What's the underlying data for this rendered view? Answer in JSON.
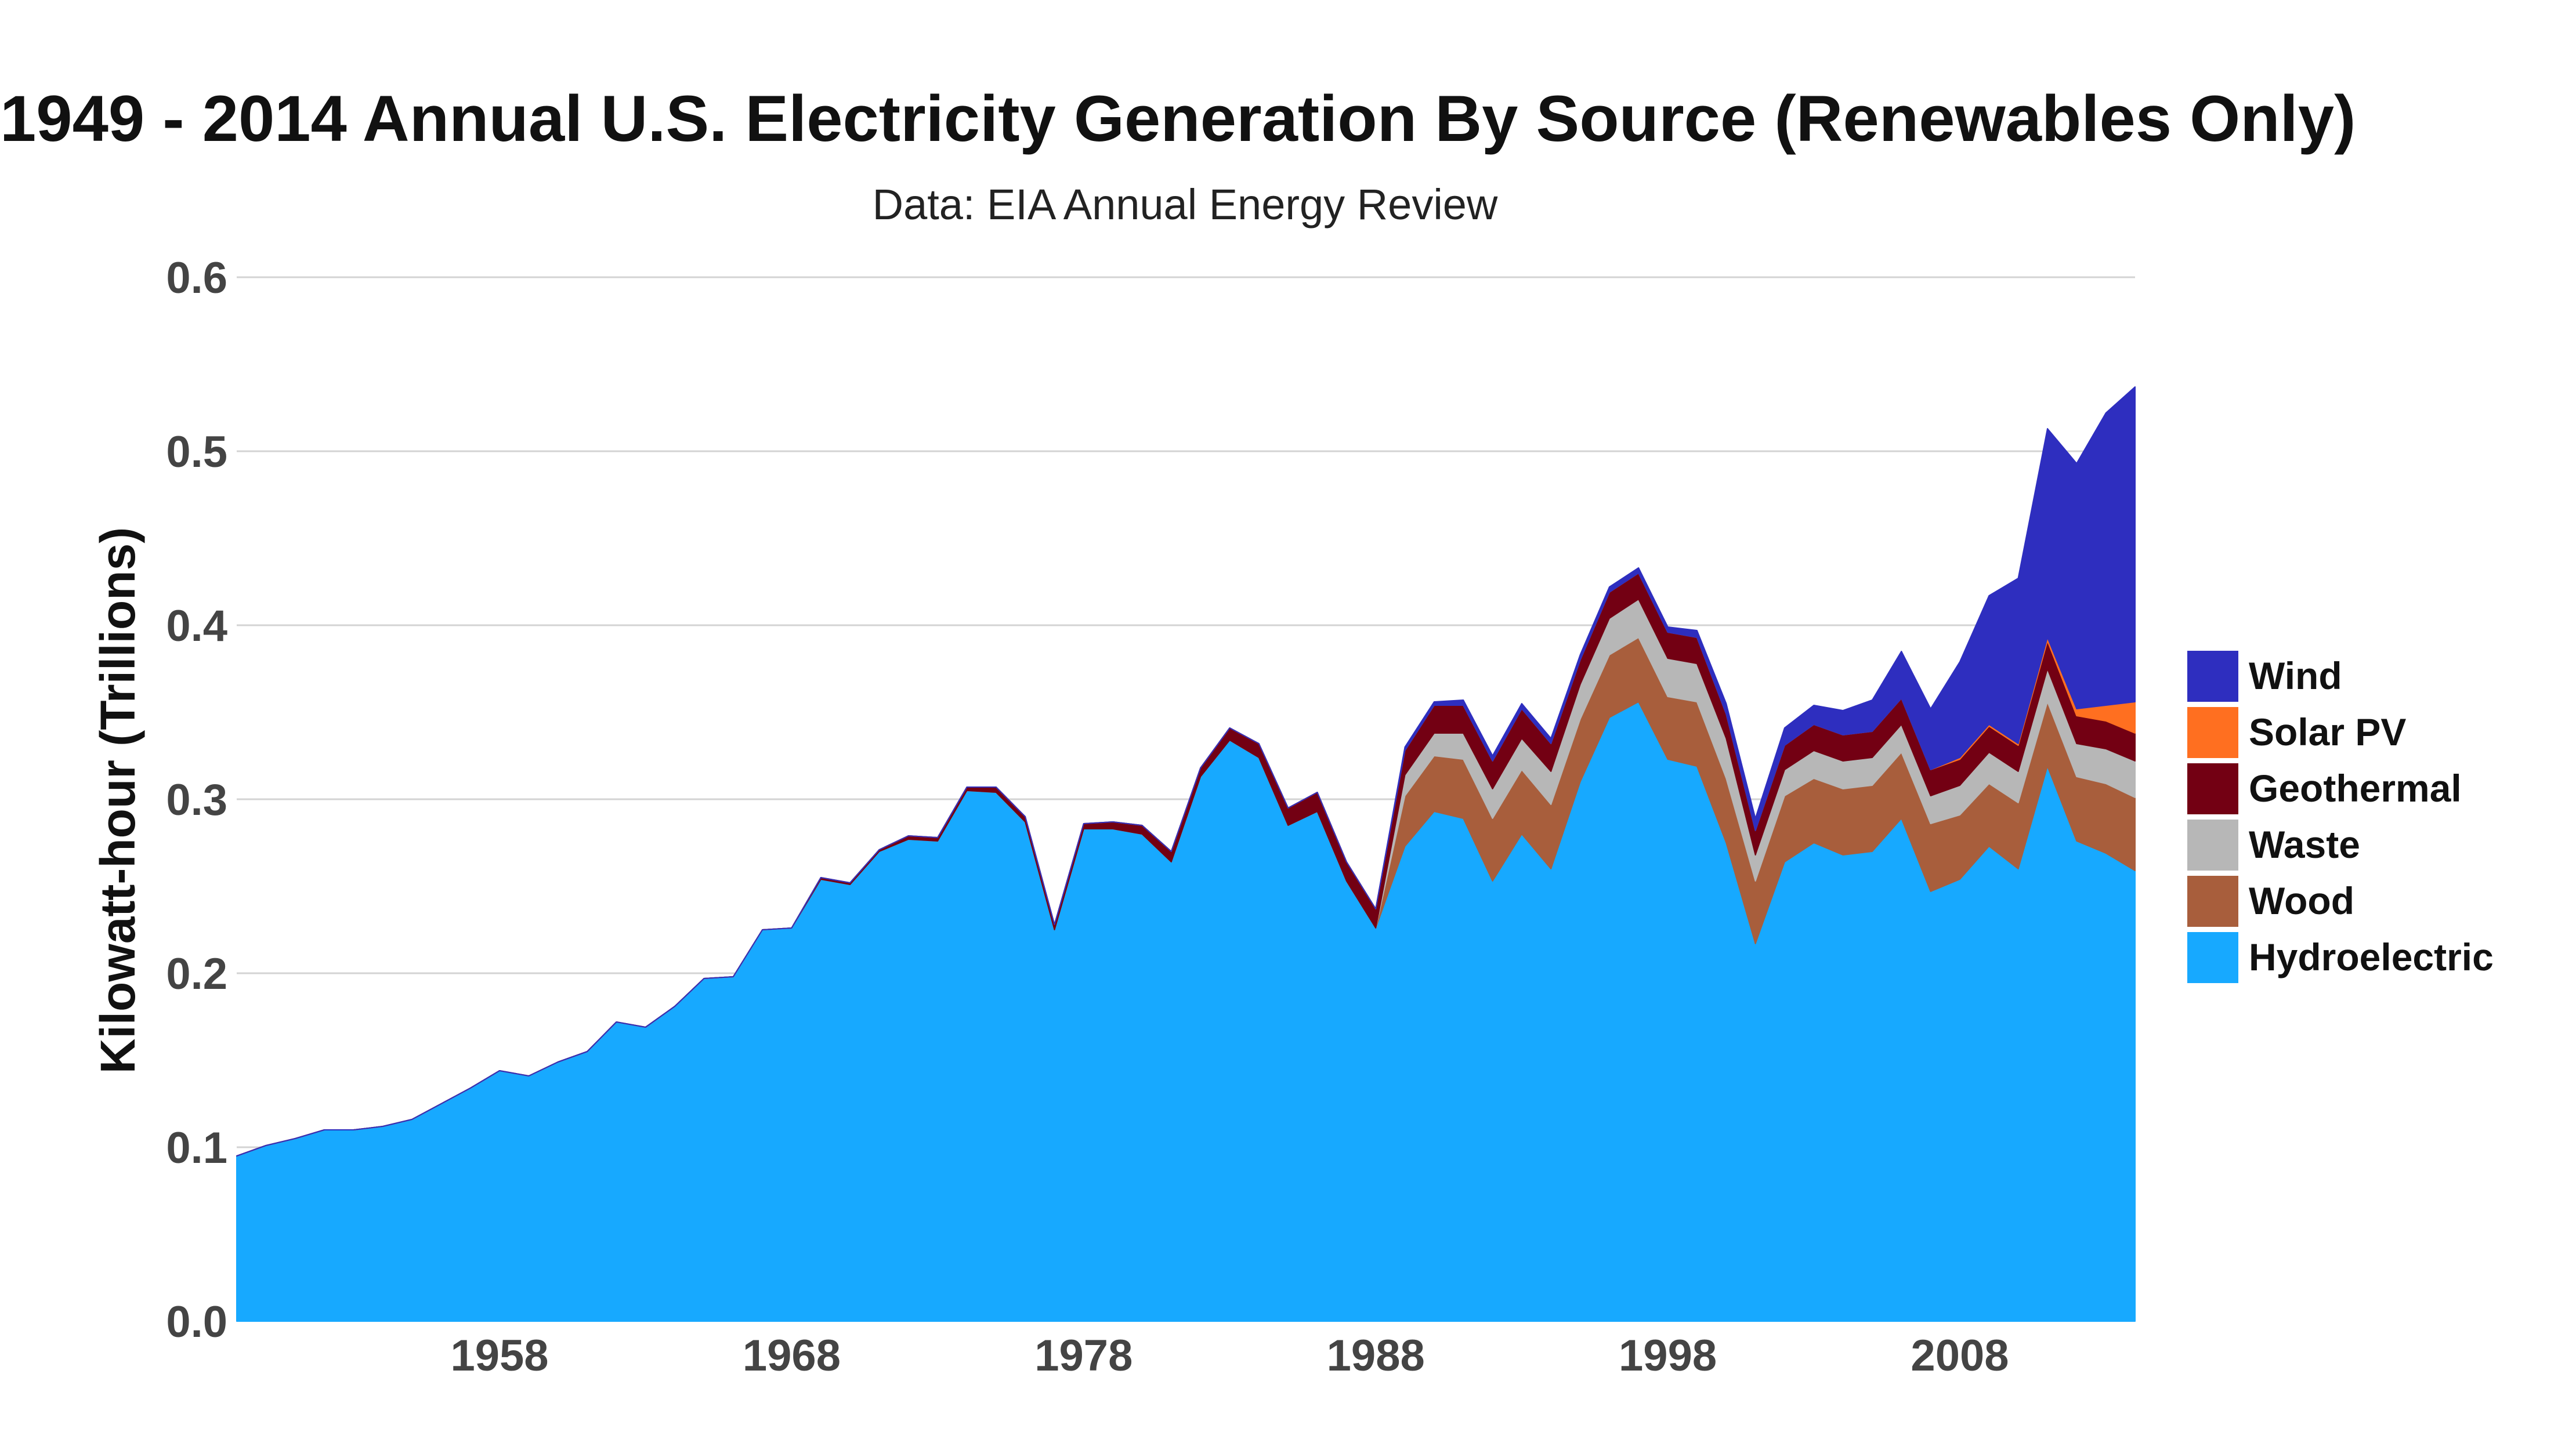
{
  "chart_data": {
    "type": "area",
    "stacked": true,
    "title": "1949 - 2014 Annual U.S. Electricity Generation By Source (Renewables Only)",
    "subtitle": "Data: EIA Annual Energy Review",
    "xlabel": "",
    "ylabel": "Kilowatt-hour (Trillions)",
    "xlim": [
      1949,
      2014
    ],
    "ylim": [
      0,
      0.6
    ],
    "yticks": [
      "0.0",
      "0.1",
      "0.2",
      "0.3",
      "0.4",
      "0.5",
      "0.6"
    ],
    "xticks": [
      "1958",
      "1968",
      "1978",
      "1988",
      "1998",
      "2008"
    ],
    "grid": true,
    "legend_position": "right",
    "x": [
      1949,
      1950,
      1951,
      1952,
      1953,
      1954,
      1955,
      1956,
      1957,
      1958,
      1959,
      1960,
      1961,
      1962,
      1963,
      1964,
      1965,
      1966,
      1967,
      1968,
      1969,
      1970,
      1971,
      1972,
      1973,
      1974,
      1975,
      1976,
      1977,
      1978,
      1979,
      1980,
      1981,
      1982,
      1983,
      1984,
      1985,
      1986,
      1987,
      1988,
      1989,
      1990,
      1991,
      1992,
      1993,
      1994,
      1995,
      1996,
      1997,
      1998,
      1999,
      2000,
      2001,
      2002,
      2003,
      2004,
      2005,
      2006,
      2007,
      2008,
      2009,
      2010,
      2011,
      2012,
      2013,
      2014
    ],
    "series": [
      {
        "name": "Hydroelectric",
        "color": "#17A9FF",
        "values": [
          0.095,
          0.101,
          0.105,
          0.11,
          0.11,
          0.112,
          0.116,
          0.125,
          0.134,
          0.144,
          0.141,
          0.149,
          0.155,
          0.172,
          0.169,
          0.181,
          0.197,
          0.198,
          0.225,
          0.226,
          0.254,
          0.251,
          0.27,
          0.277,
          0.276,
          0.305,
          0.304,
          0.287,
          0.225,
          0.283,
          0.283,
          0.28,
          0.264,
          0.313,
          0.334,
          0.324,
          0.285,
          0.293,
          0.253,
          0.226,
          0.273,
          0.293,
          0.289,
          0.253,
          0.28,
          0.26,
          0.31,
          0.347,
          0.356,
          0.323,
          0.319,
          0.275,
          0.217,
          0.264,
          0.275,
          0.268,
          0.27,
          0.289,
          0.247,
          0.254,
          0.273,
          0.26,
          0.319,
          0.276,
          0.269,
          0.259
        ]
      },
      {
        "name": "Wood",
        "color": "#A85E3C",
        "values": [
          0,
          0,
          0,
          0,
          0,
          0,
          0,
          0,
          0,
          0,
          0,
          0,
          0,
          0,
          0,
          0,
          0,
          0,
          0,
          0,
          0,
          0,
          0,
          0,
          0,
          0,
          0,
          0,
          0,
          0,
          0,
          0,
          0,
          0,
          0,
          0,
          0,
          0,
          0,
          0,
          0.029,
          0.032,
          0.034,
          0.036,
          0.037,
          0.037,
          0.036,
          0.036,
          0.037,
          0.036,
          0.037,
          0.037,
          0.036,
          0.038,
          0.037,
          0.038,
          0.038,
          0.038,
          0.039,
          0.037,
          0.036,
          0.038,
          0.037,
          0.037,
          0.04,
          0.042
        ]
      },
      {
        "name": "Waste",
        "color": "#B7B7B7",
        "values": [
          0,
          0,
          0,
          0,
          0,
          0,
          0,
          0,
          0,
          0,
          0,
          0,
          0,
          0,
          0,
          0,
          0,
          0,
          0,
          0,
          0,
          0,
          0,
          0,
          0,
          0,
          0,
          0,
          0,
          0,
          0,
          0,
          0,
          0,
          0,
          0,
          0,
          0,
          0,
          0,
          0.012,
          0.013,
          0.015,
          0.017,
          0.018,
          0.019,
          0.02,
          0.021,
          0.022,
          0.022,
          0.022,
          0.023,
          0.015,
          0.015,
          0.016,
          0.016,
          0.016,
          0.016,
          0.016,
          0.017,
          0.018,
          0.018,
          0.019,
          0.019,
          0.02,
          0.021
        ]
      },
      {
        "name": "Geothermal",
        "color": "#730013",
        "values": [
          0,
          0,
          0,
          0,
          0,
          0,
          0,
          0,
          0,
          0,
          0,
          0,
          0,
          0,
          0,
          0,
          0,
          0,
          0,
          0,
          0.001,
          0.001,
          0.001,
          0.002,
          0.002,
          0.002,
          0.003,
          0.003,
          0.003,
          0.003,
          0.004,
          0.005,
          0.006,
          0.005,
          0.007,
          0.008,
          0.01,
          0.011,
          0.011,
          0.011,
          0.014,
          0.016,
          0.016,
          0.016,
          0.017,
          0.016,
          0.014,
          0.015,
          0.015,
          0.015,
          0.015,
          0.014,
          0.014,
          0.014,
          0.015,
          0.015,
          0.015,
          0.015,
          0.015,
          0.015,
          0.015,
          0.015,
          0.016,
          0.016,
          0.016,
          0.016
        ]
      },
      {
        "name": "Solar PV",
        "color": "#FF6F20",
        "values": [
          0,
          0,
          0,
          0,
          0,
          0,
          0,
          0,
          0,
          0,
          0,
          0,
          0,
          0,
          0,
          0,
          0,
          0,
          0,
          0,
          0,
          0,
          0,
          0,
          0,
          0,
          0,
          0,
          0,
          0,
          0,
          0,
          0,
          0,
          0,
          0,
          0,
          0,
          0,
          0,
          0,
          0,
          0,
          0,
          0,
          0,
          0,
          0,
          0,
          0,
          0,
          0,
          0,
          0,
          0,
          0,
          0,
          0,
          0,
          0.001,
          0.001,
          0.001,
          0.002,
          0.004,
          0.009,
          0.018
        ]
      },
      {
        "name": "Wind",
        "color": "#2E2EBF",
        "values": [
          0,
          0,
          0,
          0,
          0,
          0,
          0,
          0,
          0,
          0,
          0,
          0,
          0,
          0,
          0,
          0,
          0,
          0,
          0,
          0,
          0,
          0,
          0,
          0,
          0,
          0,
          0,
          0,
          0,
          0,
          0,
          0,
          0,
          0,
          0,
          0,
          0,
          0,
          0,
          0,
          0.002,
          0.002,
          0.003,
          0.003,
          0.003,
          0.003,
          0.003,
          0.003,
          0.003,
          0.003,
          0.004,
          0.006,
          0.007,
          0.01,
          0.011,
          0.014,
          0.018,
          0.027,
          0.035,
          0.055,
          0.074,
          0.095,
          0.12,
          0.141,
          0.168,
          0.181
        ]
      }
    ]
  }
}
